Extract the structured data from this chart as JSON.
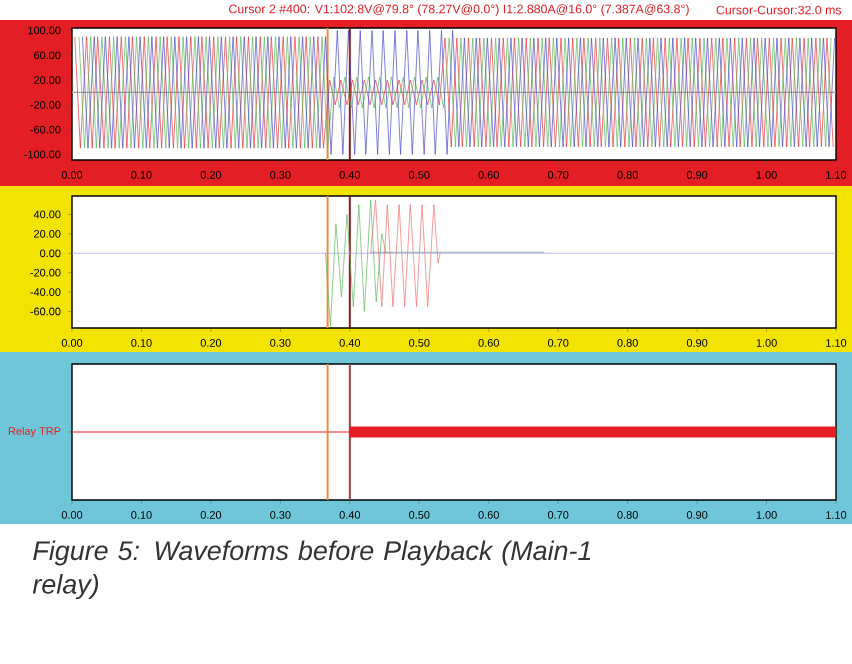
{
  "chart_data": [
    {
      "type": "line",
      "ylim": [
        -109,
        104
      ],
      "yticks": [
        {
          "value": 100,
          "label": "100.00"
        },
        {
          "value": 60,
          "label": "60.00"
        },
        {
          "value": 20,
          "label": "20.00"
        },
        {
          "value": -20,
          "label": "-20.00"
        },
        {
          "value": -60,
          "label": "-60.00"
        },
        {
          "value": -100,
          "label": "-100.00"
        }
      ],
      "xlim": [
        0,
        1.1
      ],
      "xticks": [
        {
          "value": 0,
          "label": "0.00"
        },
        {
          "value": 0.1,
          "label": "0.10"
        },
        {
          "value": 0.2,
          "label": "0.20"
        },
        {
          "value": 0.3,
          "label": "0.30"
        },
        {
          "value": 0.4,
          "label": "0.40"
        },
        {
          "value": 0.5,
          "label": "0.50"
        },
        {
          "value": 0.6,
          "label": "0.60"
        },
        {
          "value": 0.7,
          "label": "0.70"
        },
        {
          "value": 0.8,
          "label": "0.80"
        },
        {
          "value": 0.9,
          "label": "0.90"
        },
        {
          "value": 1.0,
          "label": "1.00"
        },
        {
          "value": 1.1,
          "label": "1.10"
        }
      ],
      "annotations": [
        "Cursor 2 #400: V1:102.8V@79.8° (78.27V@0.0°) I1:2.880A@16.0° (7.387A@63.8°)",
        "Cursor-Cursor:32.0 ms"
      ],
      "ref_lines": [
        {
          "axis": "y",
          "value": 0,
          "color": "#a0a0a0"
        },
        {
          "axis": "x",
          "value": 0.368,
          "color": "#f08a40"
        },
        {
          "axis": "x",
          "value": 0.4,
          "color": "#8b1c1c"
        }
      ],
      "series": [
        {
          "color": "#e8353a",
          "x": [
            0.004,
            0.012,
            0.021,
            0.029,
            0.037,
            0.046,
            0.054,
            0.062,
            0.071,
            0.079,
            0.087,
            0.096,
            0.104,
            0.112,
            0.121,
            0.129,
            0.137,
            0.146,
            0.154,
            0.162,
            0.171,
            0.179,
            0.187,
            0.196,
            0.204,
            0.212,
            0.221,
            0.229,
            0.237,
            0.246,
            0.254,
            0.262,
            0.271,
            0.279,
            0.287,
            0.296,
            0.304,
            0.312,
            0.321,
            0.329,
            0.337,
            0.346,
            0.354,
            0.362,
            0.371,
            0.379,
            0.387,
            0.396,
            0.404,
            0.412,
            0.421,
            0.429,
            0.437,
            0.446,
            0.454,
            0.462,
            0.471,
            0.479,
            0.487,
            0.496,
            0.504,
            0.512,
            0.521,
            0.529,
            0.537,
            0.546,
            0.554,
            0.562,
            0.571,
            0.579,
            0.587,
            0.596,
            0.604,
            0.612,
            0.621,
            0.629,
            0.637,
            0.646,
            0.654,
            0.662,
            0.671,
            0.679,
            0.687,
            0.696,
            0.704,
            0.712,
            0.721,
            0.729,
            0.737,
            0.746,
            0.754,
            0.762,
            0.771,
            0.779,
            0.787,
            0.796,
            0.804,
            0.812,
            0.821,
            0.829,
            0.837,
            0.846,
            0.854,
            0.862,
            0.871,
            0.879,
            0.887,
            0.896,
            0.904,
            0.912,
            0.921,
            0.929,
            0.937,
            0.946,
            0.954,
            0.962,
            0.971,
            0.979,
            0.987,
            0.996,
            1.004,
            1.012,
            1.021,
            1.029,
            1.037,
            1.046,
            1.054,
            1.062,
            1.071,
            1.079,
            1.087,
            1.096
          ],
          "values": [
            90,
            -90,
            90,
            -90,
            90,
            -90,
            90,
            -90,
            90,
            -90,
            90,
            -90,
            90,
            -90,
            90,
            -90,
            90,
            -90,
            90,
            -90,
            90,
            -90,
            90,
            -90,
            90,
            -90,
            90,
            -90,
            90,
            -90,
            90,
            -90,
            90,
            -90,
            90,
            -90,
            90,
            -90,
            90,
            -90,
            90,
            -90,
            90,
            -90,
            20,
            -20,
            20,
            -20,
            20,
            -20,
            20,
            -20,
            20,
            -20,
            20,
            -20,
            20,
            -20,
            20,
            -20,
            20,
            -20,
            20,
            -20,
            88,
            -88,
            88,
            -88,
            88,
            -88,
            88,
            -88,
            88,
            -88,
            88,
            -88,
            88,
            -88,
            88,
            -88,
            88,
            -88,
            88,
            -88,
            88,
            -88,
            88,
            -88,
            88,
            -88,
            88,
            -88,
            88,
            -88,
            88,
            -88,
            88,
            -88,
            88,
            -88,
            88,
            -88,
            88,
            -88,
            88,
            -88,
            88,
            -88,
            88,
            -88,
            88,
            -88,
            88,
            -88,
            88,
            -88,
            88,
            -88,
            88,
            -88,
            88,
            -88,
            88,
            -88,
            88,
            -88,
            88,
            -88,
            88,
            -88,
            88,
            -88
          ]
        },
        {
          "color": "#5cb85c",
          "x": [
            0.01,
            0.018,
            0.027,
            0.035,
            0.043,
            0.052,
            0.06,
            0.068,
            0.077,
            0.085,
            0.093,
            0.102,
            0.11,
            0.118,
            0.127,
            0.135,
            0.143,
            0.152,
            0.16,
            0.168,
            0.177,
            0.185,
            0.193,
            0.202,
            0.21,
            0.218,
            0.227,
            0.235,
            0.243,
            0.252,
            0.26,
            0.268,
            0.277,
            0.285,
            0.293,
            0.302,
            0.31,
            0.318,
            0.327,
            0.335,
            0.343,
            0.352,
            0.36,
            0.368,
            0.377,
            0.385,
            0.393,
            0.402,
            0.41,
            0.418,
            0.427,
            0.435,
            0.443,
            0.452,
            0.46,
            0.468,
            0.477,
            0.485,
            0.493,
            0.502,
            0.51,
            0.518,
            0.527,
            0.535,
            0.543,
            0.552,
            0.56,
            0.568,
            0.577,
            0.585,
            0.593,
            0.602,
            0.61,
            0.618,
            0.627,
            0.635,
            0.643,
            0.652,
            0.66,
            0.668,
            0.677,
            0.685,
            0.693,
            0.702,
            0.71,
            0.718,
            0.727,
            0.735,
            0.743,
            0.752,
            0.76,
            0.768,
            0.777,
            0.785,
            0.793,
            0.802,
            0.81,
            0.818,
            0.827,
            0.835,
            0.843,
            0.852,
            0.86,
            0.868,
            0.877,
            0.885,
            0.893,
            0.902,
            0.91,
            0.918,
            0.927,
            0.935,
            0.943,
            0.952,
            0.96,
            0.968,
            0.977,
            0.985,
            0.993,
            1.002,
            1.01,
            1.018,
            1.027,
            1.035,
            1.043,
            1.052,
            1.06,
            1.068,
            1.077,
            1.085,
            1.093
          ],
          "values": [
            90,
            -90,
            90,
            -90,
            90,
            -90,
            90,
            -90,
            90,
            -90,
            90,
            -90,
            90,
            -90,
            90,
            -90,
            90,
            -90,
            90,
            -90,
            90,
            -90,
            90,
            -90,
            90,
            -90,
            90,
            -90,
            90,
            -90,
            90,
            -90,
            90,
            -90,
            90,
            -90,
            90,
            -90,
            90,
            -90,
            90,
            -90,
            90,
            -90,
            25,
            -25,
            25,
            -25,
            25,
            -25,
            25,
            -25,
            25,
            -25,
            25,
            -25,
            25,
            -25,
            25,
            -25,
            25,
            -25,
            25,
            -25,
            88,
            -88,
            88,
            -88,
            88,
            -88,
            88,
            -88,
            88,
            -88,
            88,
            -88,
            88,
            -88,
            88,
            -88,
            88,
            -88,
            88,
            -88,
            88,
            -88,
            88,
            -88,
            88,
            -88,
            88,
            -88,
            88,
            -88,
            88,
            -88,
            88,
            -88,
            88,
            -88,
            88,
            -88,
            88,
            -88,
            88,
            -88,
            88,
            -88,
            88,
            -88,
            88,
            -88,
            88,
            -88,
            88,
            -88,
            88,
            -88,
            88,
            -88,
            88,
            -88,
            88,
            -88,
            88,
            -88,
            88,
            -88,
            88,
            -88,
            88
          ]
        },
        {
          "color": "#4a4ac8",
          "x": [
            0.015,
            0.023,
            0.032,
            0.04,
            0.048,
            0.057,
            0.065,
            0.073,
            0.082,
            0.09,
            0.098,
            0.107,
            0.115,
            0.123,
            0.132,
            0.14,
            0.148,
            0.157,
            0.165,
            0.173,
            0.182,
            0.19,
            0.198,
            0.207,
            0.215,
            0.223,
            0.232,
            0.24,
            0.248,
            0.257,
            0.265,
            0.273,
            0.282,
            0.29,
            0.298,
            0.307,
            0.315,
            0.323,
            0.332,
            0.34,
            0.348,
            0.357,
            0.365,
            0.373,
            0.382,
            0.39,
            0.398,
            0.407,
            0.415,
            0.423,
            0.432,
            0.44,
            0.448,
            0.457,
            0.465,
            0.473,
            0.482,
            0.49,
            0.498,
            0.507,
            0.515,
            0.523,
            0.532,
            0.54,
            0.548,
            0.557,
            0.565,
            0.573,
            0.582,
            0.59,
            0.598,
            0.607,
            0.615,
            0.623,
            0.632,
            0.64,
            0.648,
            0.657,
            0.665,
            0.673,
            0.682,
            0.69,
            0.698,
            0.707,
            0.715,
            0.723,
            0.732,
            0.74,
            0.748,
            0.757,
            0.765,
            0.773,
            0.782,
            0.79,
            0.798,
            0.807,
            0.815,
            0.823,
            0.832,
            0.84,
            0.848,
            0.857,
            0.865,
            0.873,
            0.882,
            0.89,
            0.898,
            0.907,
            0.915,
            0.923,
            0.932,
            0.94,
            0.948,
            0.957,
            0.965,
            0.973,
            0.982,
            0.99,
            0.998,
            1.007,
            1.015,
            1.023,
            1.032,
            1.04,
            1.048,
            1.057,
            1.065,
            1.073,
            1.082,
            1.09,
            1.098
          ],
          "values": [
            90,
            -90,
            90,
            -90,
            90,
            -90,
            90,
            -90,
            90,
            -90,
            90,
            -90,
            90,
            -90,
            90,
            -90,
            90,
            -90,
            90,
            -90,
            90,
            -90,
            90,
            -90,
            90,
            -90,
            90,
            -90,
            90,
            -90,
            90,
            -90,
            90,
            -90,
            90,
            -90,
            90,
            -90,
            90,
            -90,
            90,
            -90,
            90,
            -100,
            100,
            -100,
            100,
            -100,
            100,
            -100,
            100,
            -100,
            100,
            -100,
            100,
            -100,
            100,
            -100,
            100,
            -100,
            100,
            -100,
            100,
            -100,
            100,
            -88,
            88,
            -88,
            88,
            -88,
            88,
            -88,
            88,
            -88,
            88,
            -88,
            88,
            -88,
            88,
            -88,
            88,
            -88,
            88,
            -88,
            88,
            -88,
            88,
            -88,
            88,
            -88,
            88,
            -88,
            88,
            -88,
            88,
            -88,
            88,
            -88,
            88,
            -88,
            88,
            -88,
            88,
            -88,
            88,
            -88,
            88,
            -88,
            88,
            -88,
            88,
            -88,
            88,
            -88,
            88,
            -88,
            88,
            -88,
            88,
            -88,
            88,
            -88,
            88,
            -88,
            88,
            -88,
            88,
            -88,
            88,
            -88,
            88
          ]
        }
      ]
    },
    {
      "type": "line",
      "ylim": [
        -77,
        59
      ],
      "yticks": [
        {
          "value": 40,
          "label": "40.00"
        },
        {
          "value": 20,
          "label": "20.00"
        },
        {
          "value": 0,
          "label": "0.00"
        },
        {
          "value": -20,
          "label": "-20.00"
        },
        {
          "value": -40,
          "label": "-40.00"
        },
        {
          "value": -60,
          "label": "-60.00"
        }
      ],
      "xlim": [
        0,
        1.1
      ],
      "xticks": [
        {
          "value": 0,
          "label": "0.00"
        },
        {
          "value": 0.1,
          "label": "0.10"
        },
        {
          "value": 0.2,
          "label": "0.20"
        },
        {
          "value": 0.3,
          "label": "0.30"
        },
        {
          "value": 0.4,
          "label": "0.40"
        },
        {
          "value": 0.5,
          "label": "0.50"
        },
        {
          "value": 0.6,
          "label": "0.60"
        },
        {
          "value": 0.7,
          "label": "0.70"
        },
        {
          "value": 0.8,
          "label": "0.80"
        },
        {
          "value": 0.9,
          "label": "0.90"
        },
        {
          "value": 1.0,
          "label": "1.00"
        },
        {
          "value": 1.1,
          "label": "1.10"
        }
      ],
      "ref_lines": [
        {
          "axis": "x",
          "value": 0.368,
          "color": "#f08a40"
        },
        {
          "axis": "x",
          "value": 0.4,
          "color": "#8b1c1c"
        }
      ],
      "series": [
        {
          "color": "#a898d8",
          "x": [
            0,
            1.1
          ],
          "values": [
            0,
            0
          ]
        },
        {
          "color": "#5a9a9a",
          "x": [
            0.43,
            0.68
          ],
          "values": [
            1,
            1
          ]
        },
        {
          "color": "#5cb85c",
          "x": [
            0.365,
            0.372,
            0.38,
            0.388,
            0.396,
            0.405,
            0.413,
            0.421,
            0.43,
            0.438,
            0.446,
            0.452
          ],
          "values": [
            0,
            -75,
            30,
            -45,
            40,
            -55,
            50,
            -60,
            55,
            -50,
            20,
            0
          ]
        },
        {
          "color": "#f07070",
          "x": [
            0.43,
            0.437,
            0.446,
            0.454,
            0.462,
            0.471,
            0.479,
            0.487,
            0.496,
            0.504,
            0.512,
            0.521,
            0.527,
            0.53
          ],
          "values": [
            0,
            55,
            -55,
            50,
            -55,
            50,
            -55,
            50,
            -55,
            50,
            -55,
            50,
            -10,
            0
          ]
        }
      ]
    },
    {
      "type": "bar",
      "orientation": "horizontal",
      "categories": [
        "Relay TRP"
      ],
      "base": [
        0.4
      ],
      "values": [
        0.7
      ],
      "color": "#e31e24",
      "xlim": [
        0,
        1.1
      ],
      "xticks": [
        {
          "value": 0,
          "label": "0.00"
        },
        {
          "value": 0.1,
          "label": "0.10"
        },
        {
          "value": 0.2,
          "label": "0.20"
        },
        {
          "value": 0.3,
          "label": "0.30"
        },
        {
          "value": 0.4,
          "label": "0.40"
        },
        {
          "value": 0.5,
          "label": "0.50"
        },
        {
          "value": 0.6,
          "label": "0.60"
        },
        {
          "value": 0.7,
          "label": "0.70"
        },
        {
          "value": 0.8,
          "label": "0.80"
        },
        {
          "value": 0.9,
          "label": "0.90"
        },
        {
          "value": 1.0,
          "label": "1.00"
        },
        {
          "value": 1.1,
          "label": "1.10"
        }
      ],
      "ref_lines": [
        {
          "axis": "y",
          "value": "Relay TRP",
          "color": "#e31e24"
        },
        {
          "axis": "x",
          "value": 0.368,
          "color": "#f08a40"
        },
        {
          "axis": "x",
          "value": 0.4,
          "color": "#a04040"
        }
      ],
      "annotations": [
        "Figure 5: Waveforms before Playback (Main-1 relay)"
      ]
    }
  ]
}
